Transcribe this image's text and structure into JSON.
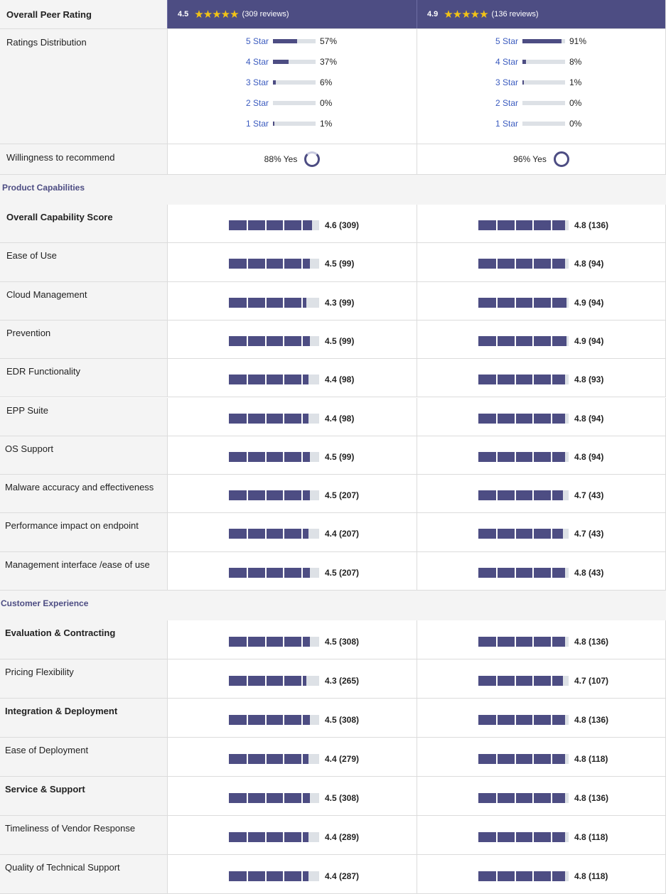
{
  "header": {
    "label": "Overall Peer Rating",
    "vendors": [
      {
        "score": "4.5",
        "reviews": "(309 reviews)"
      },
      {
        "score": "4.9",
        "reviews": "(136 reviews)"
      }
    ]
  },
  "distribution": {
    "label": "Ratings Distribution",
    "vendors": [
      {
        "items": [
          {
            "name": "5 Star",
            "percent": "57%",
            "value": 57
          },
          {
            "name": "4 Star",
            "percent": "37%",
            "value": 37
          },
          {
            "name": "3 Star",
            "percent": "6%",
            "value": 6
          },
          {
            "name": "2 Star",
            "percent": "0%",
            "value": 0
          },
          {
            "name": "1 Star",
            "percent": "1%",
            "value": 1
          }
        ]
      },
      {
        "items": [
          {
            "name": "5 Star",
            "percent": "91%",
            "value": 91
          },
          {
            "name": "4 Star",
            "percent": "8%",
            "value": 8
          },
          {
            "name": "3 Star",
            "percent": "1%",
            "value": 1
          },
          {
            "name": "2 Star",
            "percent": "0%",
            "value": 0
          },
          {
            "name": "1 Star",
            "percent": "0%",
            "value": 0
          }
        ]
      }
    ]
  },
  "willingness": {
    "label": "Willingness to recommend",
    "vendors": [
      {
        "text": "88% Yes",
        "value": 88
      },
      {
        "text": "96% Yes",
        "value": 96
      }
    ]
  },
  "product_capabilities": {
    "title": "Product Capabilities",
    "rows": [
      {
        "label": "Overall Capability Score",
        "bold": true,
        "v1": {
          "value": 4.6,
          "text": "4.6 (309)"
        },
        "v2": {
          "value": 4.8,
          "text": "4.8 (136)"
        }
      },
      {
        "label": "Ease of Use",
        "bold": false,
        "v1": {
          "value": 4.5,
          "text": "4.5 (99)"
        },
        "v2": {
          "value": 4.8,
          "text": "4.8 (94)"
        }
      },
      {
        "label": "Cloud Management",
        "bold": false,
        "v1": {
          "value": 4.3,
          "text": "4.3 (99)"
        },
        "v2": {
          "value": 4.9,
          "text": "4.9 (94)"
        }
      },
      {
        "label": "Prevention",
        "bold": false,
        "v1": {
          "value": 4.5,
          "text": "4.5 (99)"
        },
        "v2": {
          "value": 4.9,
          "text": "4.9 (94)"
        }
      },
      {
        "label": "EDR Functionality",
        "bold": false,
        "v1": {
          "value": 4.4,
          "text": "4.4 (98)"
        },
        "v2": {
          "value": 4.8,
          "text": "4.8 (93)"
        }
      },
      {
        "label": "EPP Suite",
        "bold": false,
        "v1": {
          "value": 4.4,
          "text": "4.4 (98)"
        },
        "v2": {
          "value": 4.8,
          "text": "4.8 (94)"
        }
      },
      {
        "label": "OS Support",
        "bold": false,
        "v1": {
          "value": 4.5,
          "text": "4.5 (99)"
        },
        "v2": {
          "value": 4.8,
          "text": "4.8 (94)"
        }
      },
      {
        "label": "Malware accuracy and effectiveness",
        "bold": false,
        "v1": {
          "value": 4.5,
          "text": "4.5 (207)"
        },
        "v2": {
          "value": 4.7,
          "text": "4.7 (43)"
        }
      },
      {
        "label": "Performance impact on endpoint",
        "bold": false,
        "v1": {
          "value": 4.4,
          "text": "4.4 (207)"
        },
        "v2": {
          "value": 4.7,
          "text": "4.7 (43)"
        }
      },
      {
        "label": "Management interface /ease of use",
        "bold": false,
        "v1": {
          "value": 4.5,
          "text": "4.5 (207)"
        },
        "v2": {
          "value": 4.8,
          "text": "4.8 (43)"
        }
      }
    ]
  },
  "customer_experience": {
    "title": "Customer Experience",
    "rows": [
      {
        "label": "Evaluation & Contracting",
        "bold": true,
        "v1": {
          "value": 4.5,
          "text": "4.5 (308)"
        },
        "v2": {
          "value": 4.8,
          "text": "4.8 (136)"
        }
      },
      {
        "label": "Pricing Flexibility",
        "bold": false,
        "v1": {
          "value": 4.3,
          "text": "4.3 (265)"
        },
        "v2": {
          "value": 4.7,
          "text": "4.7 (107)"
        }
      },
      {
        "label": "Integration & Deployment",
        "bold": true,
        "v1": {
          "value": 4.5,
          "text": "4.5 (308)"
        },
        "v2": {
          "value": 4.8,
          "text": "4.8 (136)"
        }
      },
      {
        "label": "Ease of Deployment",
        "bold": false,
        "v1": {
          "value": 4.4,
          "text": "4.4 (279)"
        },
        "v2": {
          "value": 4.8,
          "text": "4.8 (118)"
        }
      },
      {
        "label": "Service & Support",
        "bold": true,
        "v1": {
          "value": 4.5,
          "text": "4.5 (308)"
        },
        "v2": {
          "value": 4.8,
          "text": "4.8 (136)"
        }
      },
      {
        "label": "Timeliness of Vendor Response",
        "bold": false,
        "v1": {
          "value": 4.4,
          "text": "4.4 (289)"
        },
        "v2": {
          "value": 4.8,
          "text": "4.8 (118)"
        }
      },
      {
        "label": "Quality of Technical Support",
        "bold": false,
        "v1": {
          "value": 4.4,
          "text": "4.4 (287)"
        },
        "v2": {
          "value": 4.8,
          "text": "4.8 (118)"
        }
      }
    ]
  },
  "colors": {
    "accent": "#4d4d83",
    "star": "#f2c316",
    "link": "#3b5bbf"
  }
}
